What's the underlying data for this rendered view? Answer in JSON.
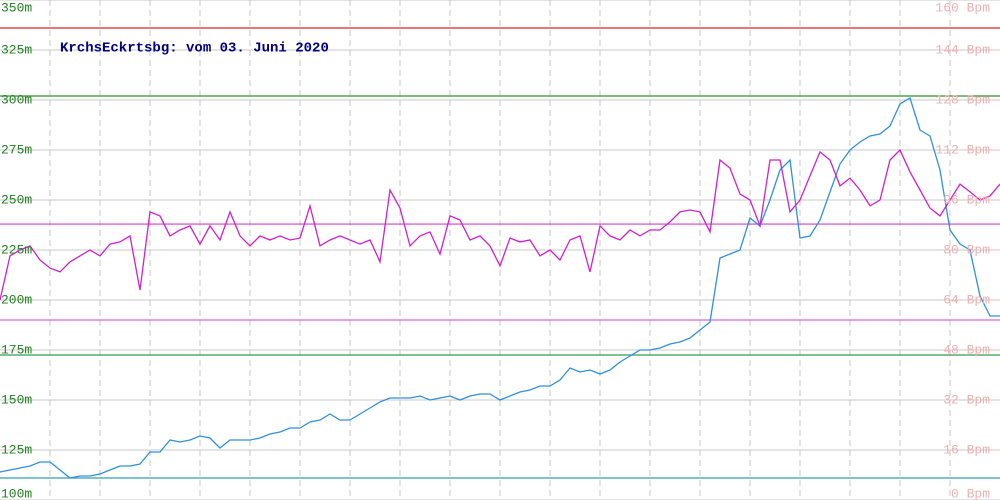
{
  "chart_data": {
    "type": "line",
    "title": "KrchsEckrtsbg: vom 03. Juni 2020",
    "ylim": [
      100,
      350
    ],
    "yticks": [
      {
        "value": 100,
        "label": "100m"
      },
      {
        "value": 125,
        "label": "125m"
      },
      {
        "value": 150,
        "label": "150m"
      },
      {
        "value": 175,
        "label": "175m"
      },
      {
        "value": 200,
        "label": "200m"
      },
      {
        "value": 225,
        "label": "225m"
      },
      {
        "value": 250,
        "label": "250m"
      },
      {
        "value": 275,
        "label": "275m"
      },
      {
        "value": 300,
        "label": "300m"
      },
      {
        "value": 325,
        "label": "325m"
      },
      {
        "value": 350,
        "label": "350m"
      }
    ],
    "y2lim": [
      0,
      160
    ],
    "y2ticks": [
      {
        "value": 0,
        "label": "0 Bpm"
      },
      {
        "value": 16,
        "label": "16 Bpm"
      },
      {
        "value": 32,
        "label": "32 Bpm"
      },
      {
        "value": 48,
        "label": "48 Bpm"
      },
      {
        "value": 64,
        "label": "64 Bpm"
      },
      {
        "value": 80,
        "label": "80 Bpm"
      },
      {
        "value": 96,
        "label": "96 Bpm"
      },
      {
        "value": 112,
        "label": "112 Bpm"
      },
      {
        "value": 128,
        "label": "128 Bpm"
      },
      {
        "value": 144,
        "label": "144 Bpm"
      },
      {
        "value": 160,
        "label": "160 Bpm"
      }
    ],
    "grid": true,
    "series": [
      {
        "axis": "y",
        "color": "#3090e0",
        "values": [
          114,
          115,
          116,
          117,
          119,
          119,
          115,
          111,
          112,
          112,
          113,
          115,
          117,
          117,
          118,
          124,
          124,
          130,
          129,
          130,
          132,
          131,
          126,
          130,
          130,
          130,
          131,
          133,
          134,
          136,
          136,
          139,
          140,
          143,
          140,
          140,
          143,
          146,
          149,
          151,
          151,
          151,
          152,
          150,
          151,
          152,
          150,
          152,
          153,
          153,
          150,
          152,
          154,
          155,
          157,
          157,
          160,
          166,
          164,
          165,
          163,
          165,
          169,
          172,
          175,
          175,
          176,
          178,
          179,
          181,
          185,
          189,
          221,
          223,
          225,
          241,
          237,
          250,
          265,
          270,
          231,
          232,
          240,
          254,
          268,
          275,
          279,
          282,
          283,
          287,
          298,
          301,
          285,
          282,
          265,
          235,
          228,
          225,
          202,
          192,
          192
        ]
      },
      {
        "axis": "y2",
        "color": "#d020d0",
        "values": [
          64,
          78.1,
          80,
          81.3,
          76.8,
          74.2,
          73,
          76.2,
          78.1,
          80,
          78.1,
          81.9,
          82.6,
          84.5,
          67.2,
          92.2,
          90.9,
          84.5,
          86.4,
          87.7,
          81.9,
          87.7,
          83.2,
          92.2,
          84.5,
          81.3,
          84.5,
          83.2,
          84.5,
          83.2,
          83.8,
          94.1,
          81.3,
          83.2,
          84.5,
          83.2,
          81.9,
          83.2,
          76.2,
          99.2,
          93.4,
          81.3,
          84.5,
          85.8,
          78.7,
          90.9,
          89.6,
          83.2,
          84.5,
          81.3,
          74.9,
          83.8,
          82.6,
          83.2,
          78.1,
          80,
          76.8,
          83.2,
          84.5,
          73,
          87.7,
          84.5,
          83.2,
          86.4,
          84.5,
          86.4,
          86.4,
          89,
          92.2,
          92.8,
          92.2,
          85.8,
          108.8,
          106.2,
          97.9,
          96,
          87.7,
          108.8,
          108.8,
          92.2,
          96,
          103.7,
          111.4,
          108.8,
          100.5,
          103,
          99.2,
          94.1,
          96,
          108.8,
          112,
          105,
          99.2,
          93.4,
          90.9,
          96,
          101.1,
          98.6,
          96,
          97.3,
          101.1
        ]
      }
    ],
    "ref_lines": [
      {
        "axis": "y",
        "value": 336,
        "color": "#e02020"
      },
      {
        "axis": "y",
        "value": 302,
        "color": "#309030"
      },
      {
        "axis": "y",
        "value": 172.5,
        "color": "#30a050"
      },
      {
        "axis": "y",
        "value": 111,
        "color": "#30a0b0"
      },
      {
        "axis": "y2",
        "value": 88.3,
        "color": "#d040d0"
      },
      {
        "axis": "y2",
        "value": 57.6,
        "color": "#e060e0"
      }
    ]
  }
}
